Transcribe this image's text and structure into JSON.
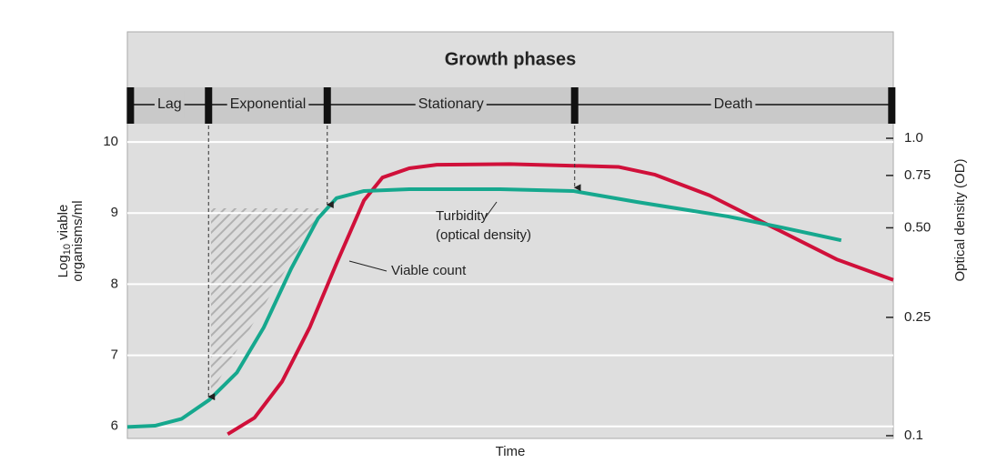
{
  "chart_data": {
    "type": "line",
    "title": "Growth phases",
    "xlabel": "Time",
    "ylabel": {
      "main": "Log",
      "sub": "10",
      "rest": " viable",
      "line2": "organisms/ml"
    },
    "y2label": "Optical density (OD)",
    "xlim": [
      0,
      100
    ],
    "ylim": [
      5.83,
      11.55
    ],
    "yticks": [
      6,
      7,
      8,
      9,
      10
    ],
    "y2lim": [
      0.0979,
      2.28
    ],
    "y2log": true,
    "y2ticks": [
      {
        "value": 0.1,
        "label": "0.1"
      },
      {
        "value": 0.25,
        "label": "0.25"
      },
      {
        "value": 0.5,
        "label": "0.50"
      },
      {
        "value": 0.75,
        "label": "0.75"
      },
      {
        "value": 1,
        "label": "1.0"
      }
    ],
    "grid": true,
    "phases": {
      "labels": [
        "Lag",
        "Exponential",
        "Stationary",
        "Death"
      ],
      "boundaries": [
        0.4,
        10.6,
        26.1,
        58.4,
        99.8
      ]
    },
    "series": [
      {
        "name": "Viable count",
        "color": "#d0103a",
        "x": [
          13.1,
          16.6,
          20.2,
          23.8,
          27.3,
          30.9,
          33.3,
          36.8,
          40.4,
          49.9,
          64.1,
          68.9,
          76.0,
          84.3,
          92.6,
          100
        ],
        "values": [
          5.89,
          6.12,
          6.63,
          7.39,
          8.29,
          9.18,
          9.5,
          9.63,
          9.68,
          9.69,
          9.65,
          9.54,
          9.25,
          8.8,
          8.35,
          8.06
        ]
      },
      {
        "name": [
          "Turbidity",
          "(optical density)"
        ],
        "color": "#16a88e",
        "axis": "y2",
        "x": [
          0,
          3.6,
          7.1,
          10.7,
          14.3,
          17.8,
          21.4,
          24.9,
          27.3,
          30.9,
          36.8,
          48.7,
          58.2,
          66.5,
          78.4,
          85.5,
          93.2
        ],
        "values": [
          0.107,
          0.108,
          0.114,
          0.132,
          0.163,
          0.231,
          0.365,
          0.538,
          0.629,
          0.665,
          0.674,
          0.674,
          0.665,
          0.611,
          0.546,
          0.501,
          0.454
        ]
      }
    ]
  }
}
